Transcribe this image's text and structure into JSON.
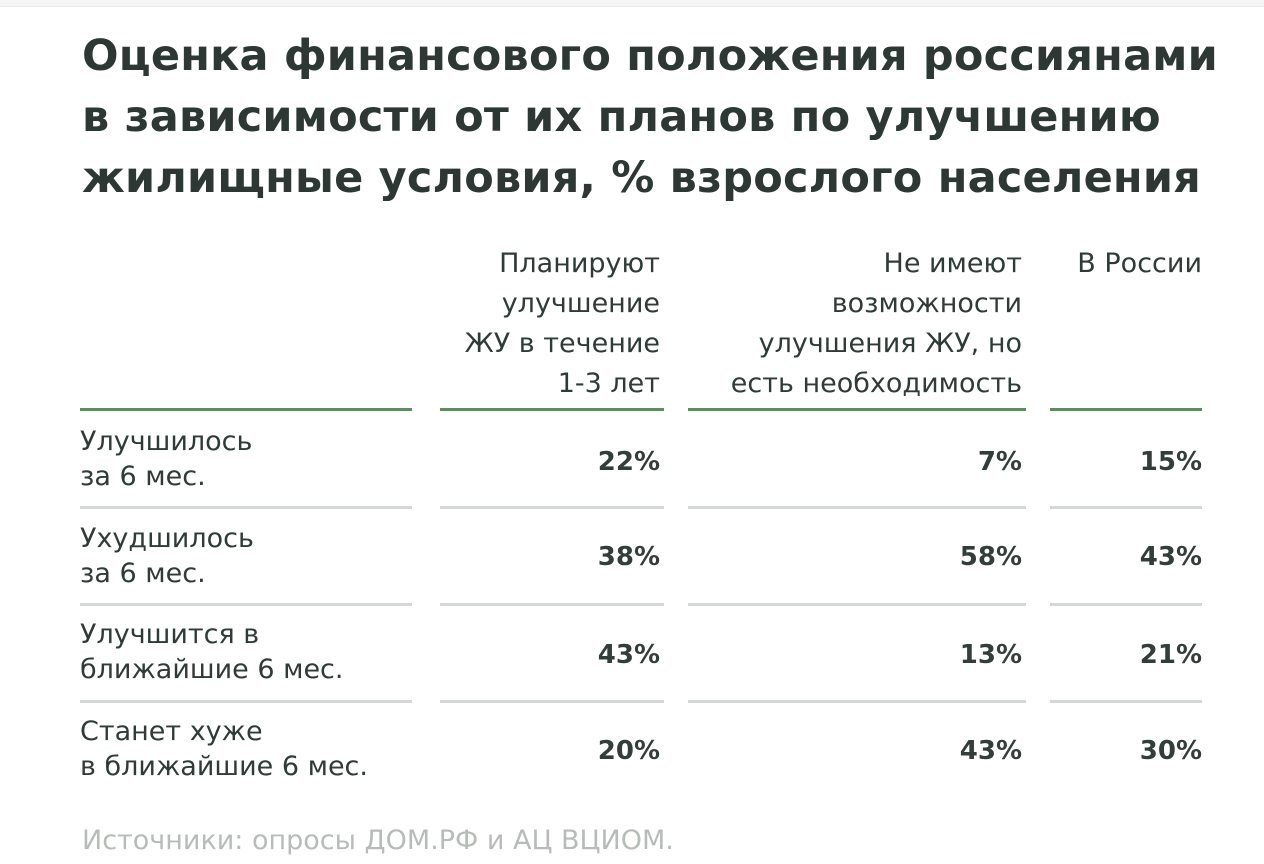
{
  "title_lines": [
    "Оценка финансового положения россиянами",
    "в зависимости от их планов по улучшению",
    "жилищные условия, % взрослого населения"
  ],
  "chart_data": {
    "type": "table",
    "title": "Оценка финансового положения россиянами в зависимости от их планов по улучшению жилищные условия, % взрослого населения",
    "columns": [
      {
        "lines": [
          "Планируют",
          "улучшение",
          "ЖУ в течение",
          "1-3  лет"
        ]
      },
      {
        "lines": [
          "Не имеют",
          "возможности",
          "улучшения ЖУ, но",
          "есть необходимость"
        ]
      },
      {
        "lines": [
          "В России"
        ]
      }
    ],
    "rows": [
      {
        "label_lines": [
          "Улучшилось",
          "за 6 мес."
        ],
        "values": [
          "22%",
          "7%",
          "15%"
        ]
      },
      {
        "label_lines": [
          "Ухудшилось",
          "за 6 мес."
        ],
        "values": [
          "38%",
          "58%",
          "43%"
        ]
      },
      {
        "label_lines": [
          "Улучшится в",
          "ближайшие 6 мес."
        ],
        "values": [
          "43%",
          "13%",
          "21%"
        ]
      },
      {
        "label_lines": [
          "Станет хуже",
          "в ближайшие 6 мес."
        ],
        "values": [
          "20%",
          "43%",
          "30%"
        ]
      }
    ],
    "colors": {
      "header_rule": "#5c8f5e",
      "row_rule": "#d4d8d5",
      "source_text": "#b8bcb9"
    }
  },
  "source": "Источники: опросы ДОМ.РФ и АЦ ВЦИОМ."
}
